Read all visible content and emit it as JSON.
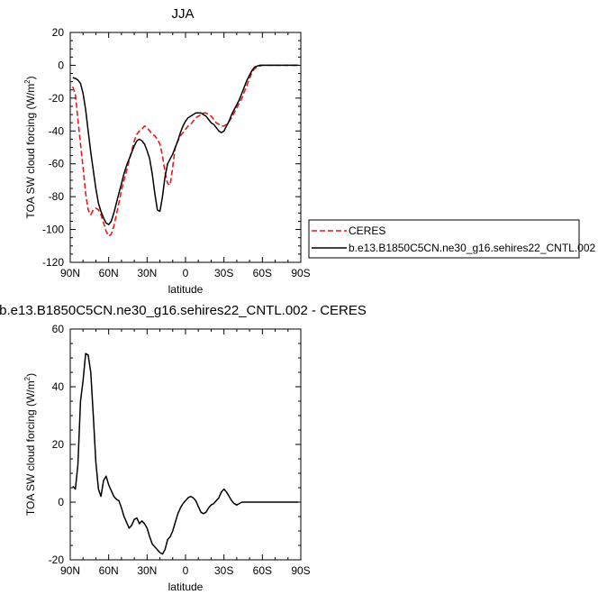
{
  "chart_data": [
    {
      "type": "line",
      "title": "JJA",
      "xlabel": "latitude",
      "ylabel": "TOA SW cloud forcing (W/m",
      "ylabel_sup": "2",
      "ylabel_tail": ")",
      "xlim": [
        90,
        -90
      ],
      "ylim": [
        -120,
        20
      ],
      "x_ticks": [
        90,
        60,
        30,
        0,
        -30,
        -60,
        -90
      ],
      "x_tick_labels": [
        "90N",
        "60N",
        "30N",
        "0",
        "30S",
        "60S",
        "90S"
      ],
      "y_ticks": [
        -120,
        -100,
        -80,
        -60,
        -40,
        -20,
        0,
        20
      ],
      "y_tick_labels": [
        "-120",
        "-100",
        "-80",
        "-60",
        "-40",
        "-20",
        "0",
        "20"
      ],
      "grid": false,
      "legend_position": "right",
      "series": [
        {
          "name": "CERES",
          "color": "#e41a1c",
          "dash": "dashed",
          "x": [
            88,
            86,
            84,
            82,
            80,
            78,
            76,
            74,
            72,
            70,
            68,
            66,
            64,
            62,
            60,
            58,
            56,
            54,
            52,
            50,
            48,
            46,
            44,
            42,
            40,
            38,
            36,
            34,
            32,
            30,
            28,
            26,
            24,
            22,
            20,
            18,
            16,
            14,
            12,
            10,
            8,
            6,
            4,
            2,
            0,
            -2,
            -4,
            -6,
            -8,
            -10,
            -12,
            -14,
            -16,
            -18,
            -20,
            -22,
            -24,
            -26,
            -28,
            -30,
            -32,
            -34,
            -36,
            -38,
            -40,
            -42,
            -44,
            -46,
            -48,
            -50,
            -52,
            -54,
            -56,
            -58,
            -60,
            -62,
            -64,
            -66,
            -68,
            -70,
            -72,
            -74,
            -76,
            -78,
            -80,
            -82,
            -84,
            -86,
            -88
          ],
          "y": [
            -13,
            -18,
            -33,
            -48,
            -62,
            -78,
            -88,
            -91,
            -88,
            -87,
            -88,
            -91,
            -96,
            -101,
            -104,
            -103,
            -98,
            -91,
            -84,
            -76,
            -70,
            -64,
            -58,
            -52,
            -46,
            -42,
            -40,
            -39,
            -37,
            -38,
            -40,
            -42,
            -43,
            -45,
            -48,
            -55,
            -65,
            -72,
            -73,
            -62,
            -50,
            -46,
            -43,
            -41,
            -39,
            -37,
            -36,
            -34,
            -32,
            -31,
            -30,
            -29,
            -29,
            -30,
            -31,
            -33,
            -35,
            -36,
            -37,
            -37,
            -36,
            -34,
            -32,
            -29,
            -26,
            -23,
            -20,
            -16,
            -12,
            -8,
            -4,
            -2,
            -1,
            -0.5,
            0,
            0,
            0,
            0,
            0,
            0,
            0,
            0,
            0,
            0,
            0,
            0,
            0,
            0,
            0
          ]
        },
        {
          "name": "b.e13.B1850C5CN.ne30_g16.sehires22_CNTL.002",
          "color": "#000000",
          "dash": "solid",
          "x": [
            88,
            86,
            84,
            82,
            80,
            78,
            76,
            74,
            72,
            70,
            68,
            66,
            64,
            62,
            60,
            58,
            56,
            54,
            52,
            50,
            48,
            46,
            44,
            42,
            40,
            38,
            36,
            34,
            32,
            30,
            28,
            26,
            24,
            22,
            20,
            18,
            16,
            14,
            12,
            10,
            8,
            6,
            4,
            2,
            0,
            -2,
            -4,
            -6,
            -8,
            -10,
            -12,
            -14,
            -16,
            -18,
            -20,
            -22,
            -24,
            -26,
            -28,
            -30,
            -32,
            -34,
            -36,
            -38,
            -40,
            -42,
            -44,
            -46,
            -48,
            -50,
            -52,
            -54,
            -56,
            -58,
            -60,
            -62,
            -64,
            -66,
            -68,
            -70,
            -72,
            -74,
            -76,
            -78,
            -80,
            -82,
            -84,
            -86,
            -88
          ],
          "y": [
            -7.5,
            -8,
            -9,
            -11,
            -17,
            -27,
            -40,
            -53,
            -64,
            -75,
            -84,
            -89,
            -93,
            -96,
            -97,
            -95,
            -90,
            -84,
            -78,
            -72,
            -66,
            -61,
            -57,
            -53,
            -49,
            -46,
            -45,
            -46,
            -48,
            -52,
            -57,
            -66,
            -78,
            -88,
            -89,
            -80,
            -68,
            -60,
            -57,
            -54,
            -50,
            -46,
            -41,
            -37,
            -34,
            -32,
            -31,
            -30,
            -29,
            -29,
            -29,
            -30,
            -31,
            -33,
            -35,
            -36,
            -38,
            -40,
            -41,
            -40,
            -37,
            -34,
            -30,
            -27,
            -24,
            -21,
            -17,
            -13,
            -9,
            -6,
            -3,
            -1,
            -0.5,
            0,
            0,
            0,
            0,
            0,
            0,
            0,
            0,
            0,
            0,
            0,
            0,
            0,
            0,
            0,
            0
          ]
        }
      ]
    },
    {
      "type": "line",
      "title": "b.e13.B1850C5CN.ne30_g16.sehires22_CNTL.002 - CERES",
      "xlabel": "latitude",
      "ylabel": "TOA SW cloud forcing (W/m",
      "ylabel_sup": "2",
      "ylabel_tail": ")",
      "xlim": [
        90,
        -90
      ],
      "ylim": [
        -20,
        60
      ],
      "x_ticks": [
        90,
        60,
        30,
        0,
        -30,
        -60,
        -90
      ],
      "x_tick_labels": [
        "90N",
        "60N",
        "30N",
        "0",
        "30S",
        "60S",
        "90S"
      ],
      "y_ticks": [
        -20,
        0,
        20,
        40,
        60
      ],
      "y_tick_labels": [
        "-20",
        "0",
        "20",
        "40",
        "60"
      ],
      "grid": false,
      "series": [
        {
          "color": "#000000",
          "dash": "solid",
          "x": [
            88,
            86,
            84,
            82,
            80,
            78,
            76,
            74,
            72,
            70,
            68,
            66,
            64,
            62,
            60,
            58,
            56,
            54,
            52,
            50,
            48,
            46,
            44,
            42,
            40,
            38,
            36,
            34,
            32,
            30,
            28,
            26,
            24,
            22,
            20,
            18,
            16,
            14,
            12,
            10,
            8,
            6,
            4,
            2,
            0,
            -2,
            -4,
            -6,
            -8,
            -10,
            -12,
            -14,
            -16,
            -18,
            -20,
            -22,
            -24,
            -26,
            -28,
            -30,
            -32,
            -34,
            -36,
            -38,
            -40,
            -42,
            -44,
            -46,
            -48,
            -50,
            -52,
            -54,
            -56,
            -58,
            -60,
            -62,
            -64,
            -66,
            -68,
            -70,
            -72,
            -74,
            -76,
            -78,
            -80,
            -82,
            -84,
            -86,
            -88
          ],
          "y": [
            5.5,
            4.5,
            13,
            35,
            42,
            51.5,
            51,
            45,
            30,
            14,
            4.5,
            2,
            7.5,
            9,
            6,
            4,
            2,
            1,
            0.5,
            -2,
            -5,
            -7,
            -9,
            -8,
            -6,
            -5.5,
            -7.5,
            -6.5,
            -7.5,
            -9,
            -12,
            -14.5,
            -15.5,
            -16.5,
            -17.5,
            -18,
            -16.5,
            -13,
            -12,
            -10,
            -7,
            -4,
            -2,
            -0.5,
            0.5,
            1.5,
            2,
            1.5,
            0.5,
            -1.5,
            -3.5,
            -4,
            -3.5,
            -2,
            -1,
            -0.5,
            0.5,
            1.5,
            3.5,
            4.5,
            3.5,
            2,
            0.5,
            -0.5,
            -1,
            -0.5,
            0,
            0,
            0,
            0,
            0,
            0,
            0,
            0,
            0,
            0,
            0,
            0,
            0,
            0,
            0,
            0,
            0,
            0,
            0,
            0,
            0,
            0,
            0
          ]
        }
      ]
    }
  ]
}
